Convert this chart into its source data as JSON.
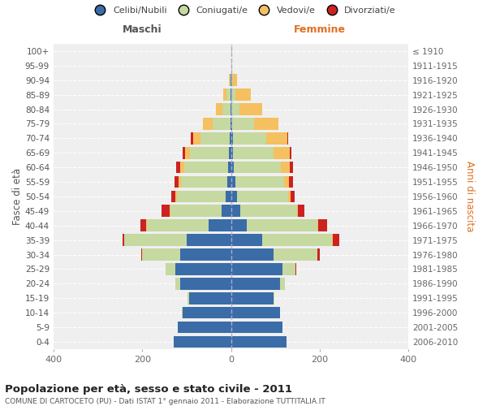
{
  "age_groups_bottom_to_top": [
    "0-4",
    "5-9",
    "10-14",
    "15-19",
    "20-24",
    "25-29",
    "30-34",
    "35-39",
    "40-44",
    "45-49",
    "50-54",
    "55-59",
    "60-64",
    "65-69",
    "70-74",
    "75-79",
    "80-84",
    "85-89",
    "90-94",
    "95-99",
    "100+"
  ],
  "anni_nascita_bottom_to_top": [
    "2006-2010",
    "2001-2005",
    "1996-2000",
    "1991-1995",
    "1986-1990",
    "1981-1985",
    "1976-1980",
    "1971-1975",
    "1966-1970",
    "1961-1965",
    "1956-1960",
    "1951-1955",
    "1946-1950",
    "1941-1945",
    "1936-1940",
    "1931-1935",
    "1926-1930",
    "1921-1925",
    "1916-1920",
    "1911-1915",
    "≤ 1910"
  ],
  "maschi": {
    "celibi": [
      130,
      120,
      110,
      95,
      115,
      125,
      115,
      100,
      50,
      22,
      12,
      8,
      6,
      4,
      3,
      2,
      1,
      2,
      1,
      0,
      0
    ],
    "coniugati": [
      0,
      0,
      1,
      3,
      10,
      22,
      85,
      140,
      140,
      115,
      110,
      105,
      100,
      88,
      65,
      40,
      18,
      8,
      2,
      0,
      0
    ],
    "vedovi": [
      0,
      0,
      0,
      0,
      0,
      0,
      0,
      0,
      1,
      2,
      3,
      5,
      8,
      12,
      18,
      22,
      15,
      8,
      1,
      0,
      0
    ],
    "divorziati": [
      0,
      0,
      0,
      0,
      0,
      1,
      2,
      5,
      14,
      18,
      10,
      10,
      10,
      5,
      4,
      0,
      0,
      0,
      0,
      0,
      0
    ]
  },
  "femmine": {
    "nubili": [
      125,
      115,
      110,
      95,
      110,
      115,
      95,
      70,
      35,
      20,
      14,
      10,
      7,
      5,
      4,
      3,
      1,
      1,
      1,
      0,
      0
    ],
    "coniugate": [
      0,
      0,
      1,
      3,
      12,
      30,
      100,
      158,
      160,
      128,
      115,
      110,
      105,
      90,
      75,
      48,
      18,
      8,
      2,
      0,
      0
    ],
    "vedove": [
      0,
      0,
      0,
      0,
      0,
      0,
      0,
      1,
      2,
      3,
      5,
      10,
      20,
      38,
      48,
      56,
      52,
      35,
      10,
      3,
      2
    ],
    "divorziate": [
      0,
      0,
      0,
      0,
      0,
      1,
      5,
      14,
      20,
      14,
      10,
      10,
      8,
      3,
      2,
      0,
      0,
      0,
      0,
      0,
      0
    ]
  },
  "colors": {
    "celibi": "#3a6ca8",
    "coniugati": "#c5d9a0",
    "vedovi": "#f5c060",
    "divorziati": "#cc2222"
  },
  "title": "Popolazione per età, sesso e stato civile - 2011",
  "subtitle": "COMUNE DI CARTOCETO (PU) - Dati ISTAT 1° gennaio 2011 - Elaborazione TUTTITALIA.IT",
  "ylabel_left": "Fasce di età",
  "ylabel_right": "Anni di nascita",
  "xlabel_maschi": "Maschi",
  "xlabel_femmine": "Femmine",
  "xlim": 400,
  "legend_labels": [
    "Celibi/Nubili",
    "Coniugati/e",
    "Vedovi/e",
    "Divorziati/e"
  ],
  "background_color": "#ffffff",
  "plot_bg_color": "#efefef"
}
